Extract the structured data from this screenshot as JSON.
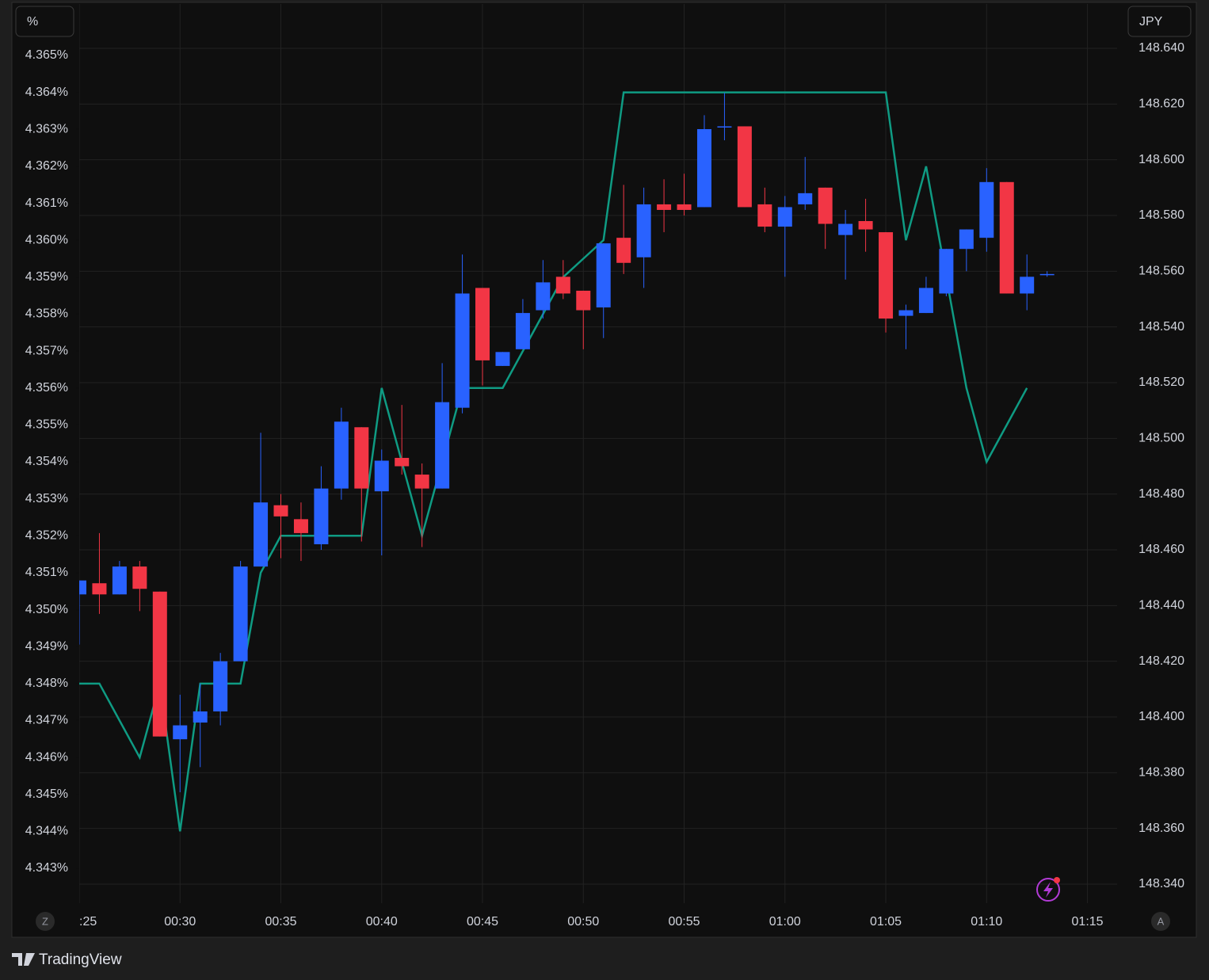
{
  "chart_data": {
    "type": "candlestick",
    "y_label": "%",
    "y2_label": "JPY",
    "x": [
      "00:25",
      "00:26",
      "00:27",
      "00:28",
      "00:29",
      "00:30",
      "00:31",
      "00:32",
      "00:33",
      "00:34",
      "00:35",
      "00:36",
      "00:37",
      "00:38",
      "00:39",
      "00:40",
      "00:41",
      "00:42",
      "00:43",
      "00:44",
      "00:45",
      "00:46",
      "00:47",
      "00:48",
      "00:49",
      "00:50",
      "00:51",
      "00:52",
      "00:53",
      "00:54",
      "00:55",
      "00:56",
      "00:57",
      "00:58",
      "00:59",
      "01:00",
      "01:01",
      "01:02",
      "01:03",
      "01:04",
      "01:05",
      "01:06",
      "01:07",
      "01:08",
      "01:09",
      "01:10",
      "01:11",
      "01:12",
      "01:13"
    ],
    "xlim": [
      "00:25",
      "01:16"
    ],
    "xticks": [
      {
        "value": "00:25",
        "label": ":25"
      },
      "00:30",
      "00:35",
      "00:40",
      "00:45",
      "00:50",
      "00:55",
      "01:00",
      "01:05",
      "01:10",
      "01:15"
    ],
    "ylim": [
      4.342057,
      4.366394
    ],
    "yticks": [
      {
        "value": 4.343,
        "label": "4.343%"
      },
      {
        "value": 4.344,
        "label": "4.344%"
      },
      {
        "value": 4.345,
        "label": "4.345%"
      },
      {
        "value": 4.346,
        "label": "4.346%"
      },
      {
        "value": 4.347,
        "label": "4.347%"
      },
      {
        "value": 4.348,
        "label": "4.348%"
      },
      {
        "value": 4.349,
        "label": "4.349%"
      },
      {
        "value": 4.35,
        "label": "4.350%"
      },
      {
        "value": 4.351,
        "label": "4.351%"
      },
      {
        "value": 4.352,
        "label": "4.352%"
      },
      {
        "value": 4.353,
        "label": "4.353%"
      },
      {
        "value": 4.354,
        "label": "4.354%"
      },
      {
        "value": 4.355,
        "label": "4.355%"
      },
      {
        "value": 4.356,
        "label": "4.356%"
      },
      {
        "value": 4.357,
        "label": "4.357%"
      },
      {
        "value": 4.358,
        "label": "4.358%"
      },
      {
        "value": 4.359,
        "label": "4.359%"
      },
      {
        "value": 4.36,
        "label": "4.360%"
      },
      {
        "value": 4.361,
        "label": "4.361%"
      },
      {
        "value": 4.362,
        "label": "4.362%"
      },
      {
        "value": 4.363,
        "label": "4.363%"
      },
      {
        "value": 4.364,
        "label": "4.364%"
      },
      {
        "value": 4.365,
        "label": "4.365%"
      }
    ],
    "y2lim": [
      148.33318,
      148.655924
    ],
    "y2ticks": [
      {
        "value": 148.34,
        "label": "148.340"
      },
      {
        "value": 148.36,
        "label": "148.360"
      },
      {
        "value": 148.38,
        "label": "148.380"
      },
      {
        "value": 148.4,
        "label": "148.400"
      },
      {
        "value": 148.42,
        "label": "148.420"
      },
      {
        "value": 148.44,
        "label": "148.440"
      },
      {
        "value": 148.46,
        "label": "148.460"
      },
      {
        "value": 148.48,
        "label": "148.480"
      },
      {
        "value": 148.5,
        "label": "148.500"
      },
      {
        "value": 148.52,
        "label": "148.520"
      },
      {
        "value": 148.54,
        "label": "148.540"
      },
      {
        "value": 148.56,
        "label": "148.560"
      },
      {
        "value": 148.58,
        "label": "148.580"
      },
      {
        "value": 148.6,
        "label": "148.600"
      },
      {
        "value": 148.62,
        "label": "148.620"
      },
      {
        "value": 148.64,
        "label": "148.640"
      }
    ],
    "grid": true,
    "series": [
      {
        "type": "line",
        "axis": "y",
        "color": "#0f9b83",
        "values": [
          4.348,
          4.348,
          4.347,
          4.346,
          4.348,
          4.344,
          4.348,
          4.348,
          4.348,
          4.351,
          4.352,
          4.352,
          4.352,
          4.352,
          4.352,
          4.356,
          4.354,
          4.352,
          4.354,
          4.356,
          4.356,
          4.356,
          4.357,
          4.358,
          4.359,
          4.3595,
          4.36,
          4.364,
          4.364,
          4.364,
          4.364,
          4.364,
          4.364,
          4.364,
          4.364,
          4.364,
          4.364,
          4.364,
          4.364,
          4.364,
          4.364,
          4.36,
          4.362,
          4.359,
          4.356,
          4.354,
          4.355,
          4.356,
          null
        ]
      },
      {
        "type": "candlestick",
        "axis": "y2",
        "up_color": "#2962ff",
        "down_color": "#f23645",
        "open": [
          148.444,
          148.448,
          148.444,
          148.454,
          148.445,
          148.392,
          148.398,
          148.402,
          148.42,
          148.454,
          148.476,
          148.471,
          148.462,
          148.482,
          148.504,
          148.481,
          148.493,
          148.487,
          148.482,
          148.511,
          148.554,
          148.526,
          148.532,
          148.546,
          148.558,
          148.553,
          148.547,
          148.572,
          148.565,
          148.584,
          148.584,
          148.583,
          148.612,
          148.612,
          148.584,
          148.576,
          148.584,
          148.59,
          148.573,
          148.578,
          148.574,
          148.544,
          148.545,
          148.552,
          148.568,
          148.572,
          148.592,
          148.552,
          148.559
        ],
        "high": [
          148.449,
          148.466,
          148.456,
          148.456,
          148.445,
          148.408,
          148.412,
          148.423,
          148.456,
          148.502,
          148.48,
          148.477,
          148.49,
          148.511,
          148.504,
          148.496,
          148.512,
          148.491,
          148.527,
          148.566,
          148.554,
          148.531,
          148.55,
          148.564,
          148.564,
          148.553,
          148.57,
          148.591,
          148.59,
          148.593,
          148.595,
          148.616,
          148.624,
          148.612,
          148.59,
          148.587,
          148.601,
          148.59,
          148.582,
          148.586,
          148.574,
          148.548,
          148.558,
          148.568,
          148.575,
          148.597,
          148.592,
          148.566,
          148.56
        ],
        "low": [
          148.426,
          148.437,
          148.444,
          148.438,
          148.393,
          148.373,
          148.382,
          148.397,
          148.42,
          148.454,
          148.457,
          148.456,
          148.46,
          148.478,
          148.463,
          148.458,
          148.487,
          148.461,
          148.482,
          148.509,
          148.519,
          148.526,
          148.532,
          148.543,
          148.55,
          148.532,
          148.536,
          148.559,
          148.554,
          148.574,
          148.58,
          148.583,
          148.607,
          148.583,
          148.574,
          148.558,
          148.582,
          148.568,
          148.557,
          148.567,
          148.538,
          148.532,
          148.545,
          148.551,
          148.56,
          148.567,
          148.552,
          148.546,
          148.558
        ],
        "close": [
          148.449,
          148.444,
          148.454,
          148.446,
          148.393,
          148.397,
          148.402,
          148.42,
          148.454,
          148.477,
          148.472,
          148.466,
          148.482,
          148.506,
          148.482,
          148.492,
          148.49,
          148.482,
          148.513,
          148.552,
          148.528,
          148.531,
          148.545,
          148.556,
          148.552,
          148.546,
          148.57,
          148.563,
          148.584,
          148.582,
          148.582,
          148.611,
          148.612,
          148.583,
          148.576,
          148.583,
          148.588,
          148.577,
          148.577,
          148.575,
          148.543,
          148.546,
          148.554,
          148.568,
          148.575,
          148.592,
          148.552,
          148.558,
          148.559
        ]
      }
    ]
  },
  "ui": {
    "z_button": "Z",
    "a_button": "A",
    "brand": "TradingView"
  }
}
